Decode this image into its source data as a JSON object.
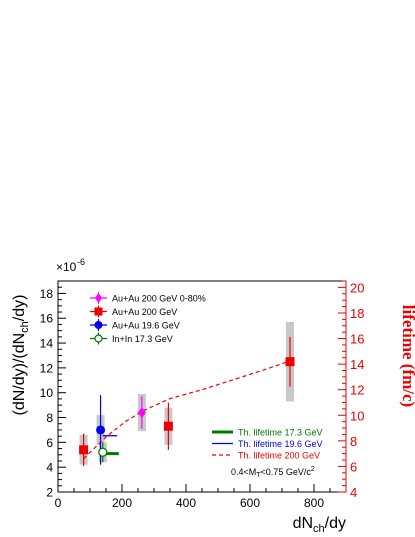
{
  "chart_data": {
    "type": "scatter",
    "xlabel": "dN",
    "xlabel_sub": "ch",
    "xlabel_tail": "/dy",
    "ylabel_parts": [
      "(dN/dy)/(dN",
      "ch",
      "/dy)"
    ],
    "y2label": "lifetime (fm/c)",
    "y_exponent_text": "×10",
    "y_exponent_power": "-6",
    "xlim": [
      0,
      900
    ],
    "ylim": [
      2,
      19
    ],
    "y2lim": [
      4,
      20.5
    ],
    "x_ticks": [
      0,
      200,
      400,
      600,
      800
    ],
    "y_ticks": [
      2,
      4,
      6,
      8,
      10,
      12,
      14,
      16,
      18
    ],
    "y2_ticks": [
      4,
      6,
      8,
      10,
      12,
      14,
      16,
      18,
      20
    ],
    "colors": {
      "axis": "#000000",
      "axis2": "#ee0000",
      "syst": "#c8c8c8",
      "au200_central": "#ff00ff",
      "au200": "#ee0000",
      "au196": "#0000ee",
      "inin": "#007700",
      "th173": "#007700",
      "th196": "#0000ee",
      "th200": "#ee0000"
    },
    "series": [
      {
        "name": "Au+Au 200 GeV 0-80%",
        "marker": "diamond",
        "color_key": "au200_central",
        "points": [
          {
            "x": 262,
            "y": 8.4,
            "err": 1.3,
            "syst": 1.5
          }
        ]
      },
      {
        "name": "Au+Au 200 GeV",
        "marker": "square",
        "color_key": "au200",
        "points": [
          {
            "x": 80,
            "y": 5.4,
            "err": 1.3,
            "syst": 1.2
          },
          {
            "x": 345,
            "y": 7.3,
            "err": 1.9,
            "syst": 1.5
          },
          {
            "x": 725,
            "y": 12.5,
            "err": 2.0,
            "syst": 3.2
          }
        ]
      },
      {
        "name": "Au+Au 19.6 GeV",
        "marker": "circle",
        "color_key": "au196",
        "points": [
          {
            "x": 133,
            "y": 7.0,
            "err": 2.8,
            "syst": 1.2
          }
        ]
      },
      {
        "name": "In+In 17.3 GeV",
        "marker": "open-circle",
        "color_key": "inin",
        "points": [
          {
            "x": 140,
            "y": 5.2,
            "err": 0.8,
            "syst": 0.8
          }
        ]
      }
    ],
    "theory": [
      {
        "name": "Th. lifetime 17.3 GeV",
        "color_key": "th173",
        "dash": "",
        "width": 3,
        "points": [
          [
            148,
            7.0
          ],
          [
            190,
            7.0
          ]
        ]
      },
      {
        "name": "Th. lifetime 19.6 GeV",
        "color_key": "th196",
        "dash": "",
        "width": 1.3,
        "points": [
          [
            140,
            8.4
          ],
          [
            185,
            8.4
          ]
        ]
      },
      {
        "name": "Th. lifetime 200 GeV",
        "color_key": "th200",
        "dash": "4,3",
        "width": 1.2,
        "points": [
          [
            80,
            6.6
          ],
          [
            150,
            8.3
          ],
          [
            210,
            9.5
          ],
          [
            270,
            10.4
          ],
          [
            350,
            11.3
          ],
          [
            450,
            12.0
          ],
          [
            550,
            12.8
          ],
          [
            650,
            13.6
          ],
          [
            720,
            14.2
          ]
        ]
      }
    ],
    "annotation": {
      "text_parts": [
        "0.4<M",
        "T",
        "<0.75 GeV/c",
        "2"
      ]
    }
  }
}
